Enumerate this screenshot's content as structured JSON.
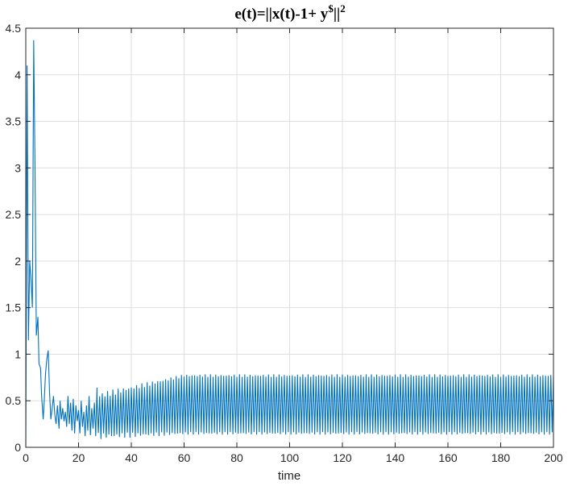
{
  "chart_data": {
    "type": "line",
    "title": {
      "prefix": "e(t)=||x(t)-1+ y",
      "superscript": "$",
      "suffix": "||",
      "power": "2"
    },
    "xlabel": "time",
    "ylabel": "",
    "xlim": [
      0,
      200
    ],
    "ylim": [
      0,
      4.5
    ],
    "xticks": [
      "0",
      "20",
      "40",
      "60",
      "80",
      "100",
      "120",
      "140",
      "160",
      "180",
      "200"
    ],
    "yticks": [
      "0",
      "0.5",
      "1",
      "1.5",
      "2",
      "2.5",
      "3",
      "3.5",
      "4",
      "4.5"
    ],
    "grid": true,
    "box": true,
    "series": [
      {
        "color": "#0072BD",
        "transient_points": [
          [
            0,
            0
          ],
          [
            0.5,
            4.1
          ],
          [
            1,
            1.15
          ],
          [
            1.5,
            2.0
          ],
          [
            2,
            1.8
          ],
          [
            2.5,
            1.5
          ],
          [
            3,
            4.37
          ],
          [
            3.5,
            3.0
          ],
          [
            4,
            1.2
          ],
          [
            4.6,
            1.4
          ],
          [
            5,
            0.9
          ],
          [
            5.6,
            0.85
          ],
          [
            6,
            0.55
          ],
          [
            6.6,
            0.3
          ],
          [
            7,
            0.5
          ],
          [
            7.5,
            0.8
          ],
          [
            8,
            0.95
          ],
          [
            8.5,
            1.04
          ],
          [
            9,
            0.6
          ],
          [
            9.5,
            0.3
          ],
          [
            10,
            0.42
          ],
          [
            10.5,
            0.55
          ],
          [
            11,
            0.35
          ],
          [
            11.5,
            0.25
          ],
          [
            12,
            0.45
          ],
          [
            12.6,
            0.2
          ],
          [
            13,
            0.5
          ],
          [
            13.5,
            0.3
          ],
          [
            14,
            0.42
          ],
          [
            14.5,
            0.28
          ],
          [
            15,
            0.38
          ],
          [
            15.5,
            0.22
          ],
          [
            16,
            0.55
          ],
          [
            16.5,
            0.25
          ],
          [
            17,
            0.48
          ],
          [
            17.5,
            0.18
          ],
          [
            18,
            0.52
          ],
          [
            18.5,
            0.15
          ],
          [
            19,
            0.45
          ],
          [
            19.5,
            0.28
          ],
          [
            20,
            0.4
          ],
          [
            20.5,
            0.15
          ],
          [
            21,
            0.5
          ],
          [
            21.5,
            0.22
          ],
          [
            22,
            0.38
          ],
          [
            22.5,
            0.12
          ],
          [
            23,
            0.45
          ],
          [
            23.5,
            0.18
          ],
          [
            24,
            0.55
          ],
          [
            24.5,
            0.13
          ],
          [
            25,
            0.42
          ],
          [
            25.5,
            0.2
          ],
          [
            26,
            0.48
          ],
          [
            26.5,
            0.12
          ],
          [
            27,
            0.64
          ]
        ],
        "oscillation": {
          "start": 27,
          "end": 200,
          "period": 1.0,
          "steady_min": 0.15,
          "steady_max": 0.77,
          "growth_until": 60,
          "early_min": 0.12,
          "early_max": 0.55
        }
      }
    ]
  }
}
